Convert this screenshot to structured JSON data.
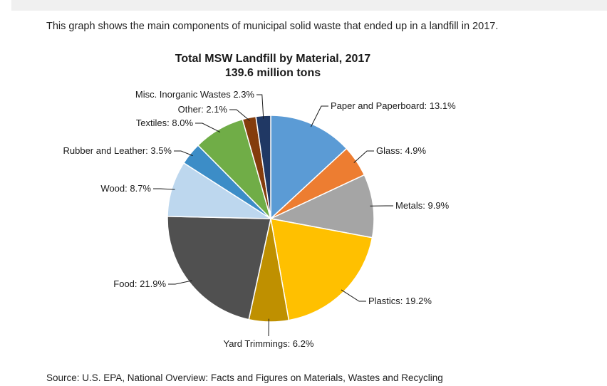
{
  "intro_text": "This graph shows the main components of municipal solid waste that ended up in a landfill in 2017.",
  "source_text": "Source: U.S. EPA, National Overview: Facts and Figures on Materials, Wastes and Recycling",
  "chart_data": {
    "type": "pie",
    "title": "Total MSW Landfill by Material, 2017",
    "subtitle": "139.6 million tons",
    "unit": "%",
    "slices": [
      {
        "name": "Paper and Paperboard",
        "value": 13.1,
        "label": "Paper and Paperboard: 13.1%",
        "color": "#5b9bd5"
      },
      {
        "name": "Glass",
        "value": 4.9,
        "label": "Glass: 4.9%",
        "color": "#ed7d31"
      },
      {
        "name": "Metals",
        "value": 9.9,
        "label": "Metals: 9.9%",
        "color": "#a5a5a5"
      },
      {
        "name": "Plastics",
        "value": 19.2,
        "label": "Plastics: 19.2%",
        "color": "#ffc000"
      },
      {
        "name": "Yard Trimmings",
        "value": 6.2,
        "label": "Yard Trimmings: 6.2%",
        "color": "#bf9000"
      },
      {
        "name": "Food",
        "value": 21.9,
        "label": "Food: 21.9%",
        "color": "#505050"
      },
      {
        "name": "Wood",
        "value": 8.7,
        "label": "Wood: 8.7%",
        "color": "#bdd7ee"
      },
      {
        "name": "Rubber and Leather",
        "value": 3.5,
        "label": "Rubber and Leather: 3.5%",
        "color": "#3c8dc7"
      },
      {
        "name": "Textiles",
        "value": 8.0,
        "label": "Textiles: 8.0%",
        "color": "#70ad47"
      },
      {
        "name": "Other",
        "value": 2.1,
        "label": "Other: 2.1%",
        "color": "#843c0c"
      },
      {
        "name": "Misc. Inorganic Wastes",
        "value": 2.3,
        "label": "Misc. Inorganic Wastes 2.3%",
        "color": "#203864"
      }
    ]
  }
}
